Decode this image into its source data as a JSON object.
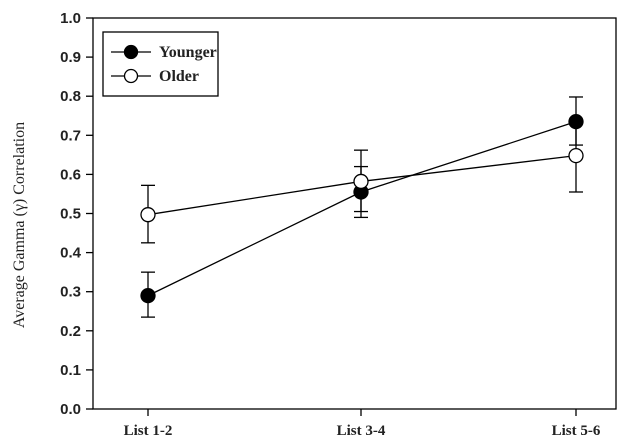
{
  "chart_data": {
    "type": "line",
    "title": "",
    "xlabel": "",
    "ylabel": "Average Gamma (γ) Correlation",
    "categories": [
      "List 1-2",
      "List 3-4",
      "List 5-6"
    ],
    "ylim": [
      0.0,
      1.0
    ],
    "yticks": [
      "0.0",
      "0.1",
      "0.2",
      "0.3",
      "0.4",
      "0.5",
      "0.6",
      "0.7",
      "0.8",
      "0.9",
      "1.0"
    ],
    "grid": false,
    "legend_position": "top-left",
    "series": [
      {
        "name": "Younger",
        "marker": "filled-circle",
        "color": "#000000",
        "values": [
          0.29,
          0.555,
          0.735
        ],
        "error_low": [
          0.235,
          0.49,
          0.675
        ],
        "error_high": [
          0.35,
          0.62,
          0.798
        ]
      },
      {
        "name": "Older",
        "marker": "open-circle",
        "color": "#000000",
        "values": [
          0.497,
          0.582,
          0.648
        ],
        "error_low": [
          0.425,
          0.505,
          0.555
        ],
        "error_high": [
          0.572,
          0.662,
          0.74
        ]
      }
    ]
  }
}
